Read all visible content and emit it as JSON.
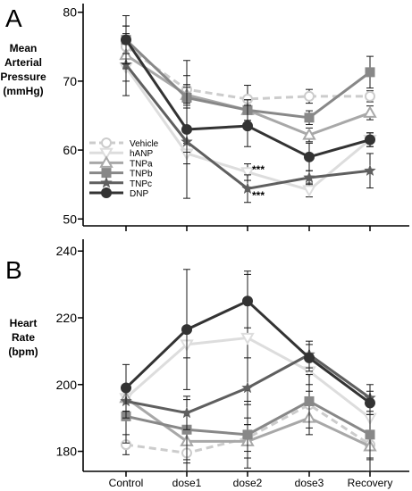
{
  "figure": {
    "panels": [
      {
        "letter": "A",
        "ylabel_lines": [
          "Mean",
          "Arterial",
          "Pressure",
          "(mmHg)"
        ]
      },
      {
        "letter": "B",
        "ylabel_lines": [
          "Heart",
          "Rate",
          "(bpm)"
        ]
      }
    ],
    "annotations": [
      "***",
      "***"
    ]
  },
  "chart_data": [
    {
      "type": "line",
      "panel": "A",
      "ylabel": "Mean Arterial Pressure (mmHg)",
      "categories": [
        "Control",
        "dose1",
        "dose2",
        "dose3",
        "Recovery"
      ],
      "ylim": [
        49,
        81
      ],
      "yticks": [
        50,
        60,
        70,
        80
      ],
      "legend": {
        "placement": "left-middle"
      },
      "series": [
        {
          "name": "Vehicle",
          "marker": "circle-open",
          "color": "#cccccc",
          "dashed": true,
          "values": [
            75.0,
            68.8,
            67.4,
            67.8,
            67.8
          ],
          "errors": [
            3.0,
            2.0,
            2.0,
            1.0,
            0.8
          ]
        },
        {
          "name": "hANP",
          "marker": "triangle-down-open",
          "color": "#dddddd",
          "dashed": false,
          "values": [
            72.0,
            59.5,
            56.8,
            54.2,
            61.5
          ],
          "errors": [
            2.0,
            1.5,
            1.2,
            1.0,
            1.0
          ]
        },
        {
          "name": "TNPa",
          "marker": "triangle-up-open",
          "color": "#a8a8a8",
          "dashed": false,
          "values": [
            73.8,
            68.0,
            65.8,
            62.2,
            65.4
          ],
          "errors": [
            2.0,
            1.5,
            1.5,
            1.0,
            1.0
          ]
        },
        {
          "name": "TNPb",
          "marker": "square",
          "color": "#888888",
          "dashed": false,
          "values": [
            76.0,
            67.6,
            65.8,
            64.7,
            71.3
          ],
          "errors": [
            2.0,
            1.5,
            1.5,
            1.0,
            2.3
          ]
        },
        {
          "name": "TNPc",
          "marker": "star",
          "color": "#5f5f5f",
          "dashed": false,
          "values": [
            72.4,
            61.2,
            54.4,
            56.0,
            57.0
          ],
          "errors": [
            4.5,
            1.5,
            2.0,
            1.0,
            2.5
          ]
        },
        {
          "name": "DNP",
          "marker": "circle-filled",
          "color": "#333333",
          "dashed": false,
          "values": [
            76.0,
            63.0,
            63.5,
            59.0,
            61.5
          ],
          "errors": [
            3.5,
            10.0,
            3.0,
            2.0,
            1.0
          ]
        }
      ],
      "annotations": [
        {
          "text": "***",
          "x": "dose2",
          "y": 57.0
        },
        {
          "text": "***",
          "x": "dose2",
          "y": 53.5
        }
      ]
    },
    {
      "type": "line",
      "panel": "B",
      "ylabel": "Heart Rate (bpm)",
      "categories": [
        "Control",
        "dose1",
        "dose2",
        "dose3",
        "Recovery"
      ],
      "ylim": [
        174,
        243
      ],
      "yticks": [
        180,
        200,
        220,
        240
      ],
      "series": [
        {
          "name": "Vehicle",
          "marker": "circle-open",
          "color": "#cccccc",
          "dashed": true,
          "values": [
            182.0,
            179.5,
            184.0,
            194.0,
            182.0
          ],
          "errors": [
            3.0,
            3.0,
            4.0,
            4.0,
            4.0
          ]
        },
        {
          "name": "hANP",
          "marker": "triangle-down-open",
          "color": "#dddddd",
          "dashed": false,
          "values": [
            196.0,
            212.0,
            214.0,
            204.0,
            190.0
          ],
          "errors": [
            4.0,
            4.0,
            20.0,
            4.0,
            4.0
          ]
        },
        {
          "name": "TNPa",
          "marker": "triangle-up-open",
          "color": "#a8a8a8",
          "dashed": false,
          "values": [
            196.0,
            183.0,
            183.0,
            190.0,
            181.5
          ],
          "errors": [
            4.0,
            9.0,
            5.0,
            5.0,
            4.0
          ]
        },
        {
          "name": "TNPb",
          "marker": "square",
          "color": "#888888",
          "dashed": false,
          "values": [
            190.5,
            186.5,
            185.0,
            195.0,
            185.0
          ],
          "errors": [
            8.0,
            9.0,
            10.0,
            8.0,
            11.0
          ]
        },
        {
          "name": "TNPc",
          "marker": "star",
          "color": "#5f5f5f",
          "dashed": false,
          "values": [
            195.0,
            191.5,
            199.0,
            209.0,
            196.0
          ],
          "errors": [
            5.0,
            5.0,
            9.0,
            4.0,
            4.0
          ]
        },
        {
          "name": "DNP",
          "marker": "circle-filled",
          "color": "#333333",
          "dashed": false,
          "values": [
            199.0,
            216.5,
            225.0,
            208.0,
            194.5
          ],
          "errors": [
            7.0,
            18.0,
            8.0,
            4.0,
            3.5
          ]
        }
      ]
    }
  ]
}
